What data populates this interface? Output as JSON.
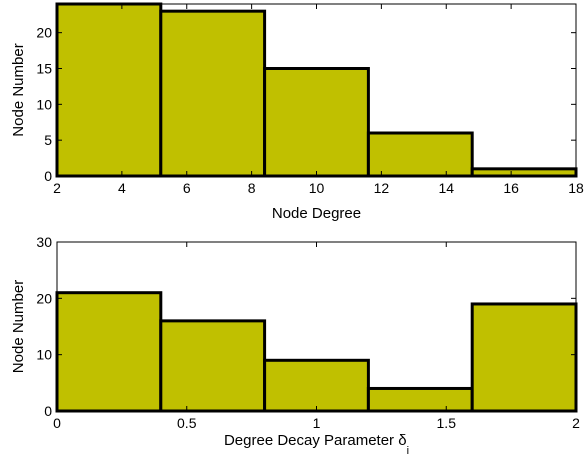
{
  "figure": {
    "bar_color": "#c0c000",
    "edge_color": "#000000"
  },
  "chart_data": [
    {
      "type": "bar",
      "xlabel": "Node Degree",
      "ylabel": "Node Number",
      "xlim": [
        2,
        18
      ],
      "ylim": [
        0,
        24
      ],
      "xticks": [
        "2",
        "4",
        "6",
        "8",
        "10",
        "12",
        "14",
        "16",
        "18"
      ],
      "yticks": [
        "0",
        "5",
        "10",
        "15",
        "20"
      ],
      "bins": [
        {
          "x0": 2.0,
          "x1": 5.2,
          "value": 24
        },
        {
          "x0": 5.2,
          "x1": 8.4,
          "value": 23
        },
        {
          "x0": 8.4,
          "x1": 11.6,
          "value": 15
        },
        {
          "x0": 11.6,
          "x1": 14.8,
          "value": 6
        },
        {
          "x0": 14.8,
          "x1": 18.0,
          "value": 1
        }
      ],
      "grid": false
    },
    {
      "type": "bar",
      "xlabel": "Degree Decay Parameter δ",
      "xlabel_subscript": "i",
      "ylabel": "Node Number",
      "xlim": [
        0,
        2
      ],
      "ylim": [
        0,
        30
      ],
      "xticks": [
        "0",
        "0.5",
        "1",
        "1.5",
        "2"
      ],
      "yticks": [
        "0",
        "10",
        "20",
        "30"
      ],
      "bins": [
        {
          "x0": 0.0,
          "x1": 0.4,
          "value": 21
        },
        {
          "x0": 0.4,
          "x1": 0.8,
          "value": 16
        },
        {
          "x0": 0.8,
          "x1": 1.2,
          "value": 9
        },
        {
          "x0": 1.2,
          "x1": 1.6,
          "value": 4
        },
        {
          "x0": 1.6,
          "x1": 2.0,
          "value": 19
        }
      ],
      "grid": false
    }
  ]
}
